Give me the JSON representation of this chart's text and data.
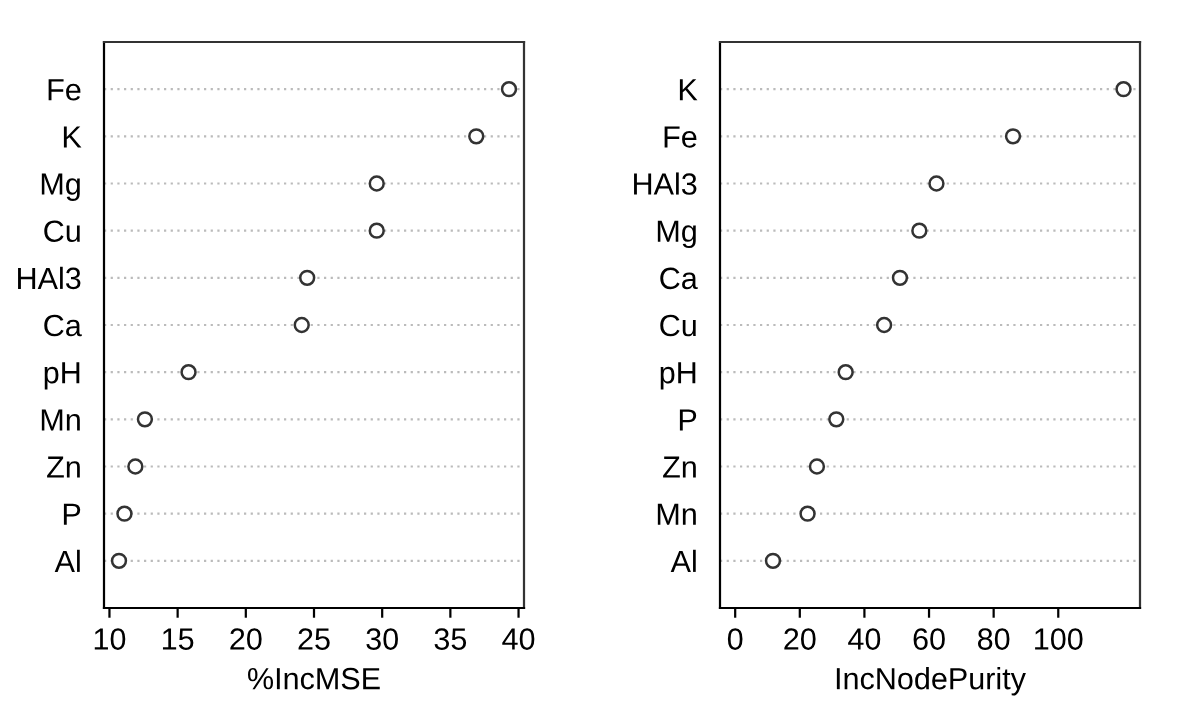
{
  "chart_data": [
    {
      "type": "scatter",
      "orientation": "horizontal",
      "xlabel": "%IncMSE",
      "categories": [
        "Fe",
        "K",
        "Mg",
        "Cu",
        "HAl3",
        "Ca",
        "pH",
        "Mn",
        "Zn",
        "P",
        "Al"
      ],
      "series": [
        {
          "color": "#333333",
          "values": [
            39.3,
            36.9,
            29.6,
            29.6,
            24.5,
            24.1,
            15.8,
            12.6,
            11.9,
            11.1,
            10.7
          ]
        }
      ],
      "xlim": [
        9.6,
        40.4
      ],
      "xticks": [
        10,
        15,
        20,
        25,
        30,
        35,
        40
      ],
      "grid": "y",
      "marker": "circle"
    },
    {
      "type": "scatter",
      "orientation": "horizontal",
      "xlabel": "IncNodePurity",
      "categories": [
        "K",
        "Fe",
        "HAl3",
        "Mg",
        "Ca",
        "Cu",
        "pH",
        "P",
        "Zn",
        "Mn",
        "Al"
      ],
      "series": [
        {
          "color": "#333333",
          "values": [
            120.2,
            86.0,
            62.3,
            57.0,
            51.0,
            46.1,
            34.2,
            31.3,
            25.3,
            22.4,
            11.7
          ]
        }
      ],
      "xlim": [
        -4.7,
        125.3
      ],
      "xticks": [
        0,
        20,
        40,
        60,
        80,
        100
      ],
      "grid": "y",
      "marker": "circle"
    }
  ]
}
